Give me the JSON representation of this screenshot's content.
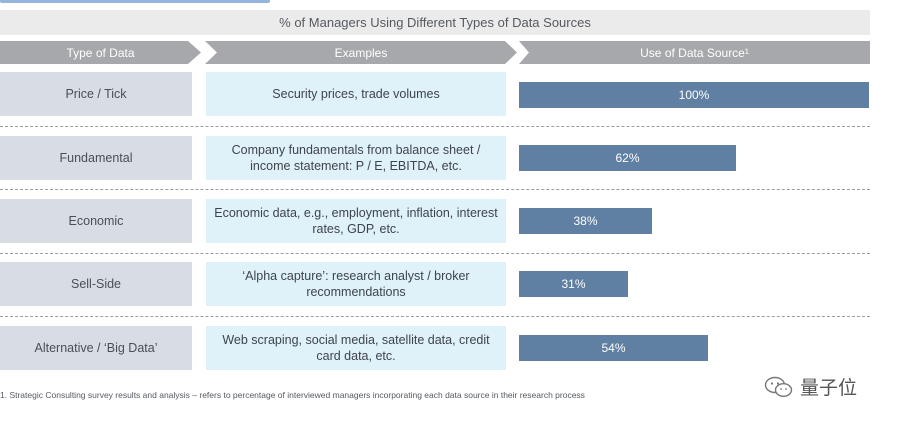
{
  "title": "% of Managers Using Different Types of Data Sources",
  "headers": {
    "type": "Type of Data",
    "examples": "Examples",
    "use": "Use of Data Source¹"
  },
  "chart_data": {
    "type": "bar",
    "title": "% of Managers Using Different Types of Data Sources",
    "categories": [
      "Price / Tick",
      "Fundamental",
      "Economic",
      "Sell-Side",
      "Alternative / ‘Big Data’"
    ],
    "examples": [
      "Security prices, trade volumes",
      "Company fundamentals from balance sheet / income statement: P / E, EBITDA, etc.",
      "Economic data, e.g., employment, inflation, interest rates, GDP, etc.",
      "‘Alpha capture’: research analyst / broker recommendations",
      "Web scraping, social media, satellite data, credit card data, etc."
    ],
    "values": [
      100,
      62,
      38,
      31,
      54
    ],
    "labels": [
      "100%",
      "62%",
      "38%",
      "31%",
      "54%"
    ],
    "ylim": [
      0,
      100
    ],
    "bar_color": "#5f7fa3",
    "orientation": "horizontal"
  },
  "footnote": "1. Strategic Consulting survey results and analysis – refers to percentage of interviewed managers incorporating each data source in their research process",
  "watermark": {
    "text": "量子位",
    "icon": "wechat-icon"
  }
}
